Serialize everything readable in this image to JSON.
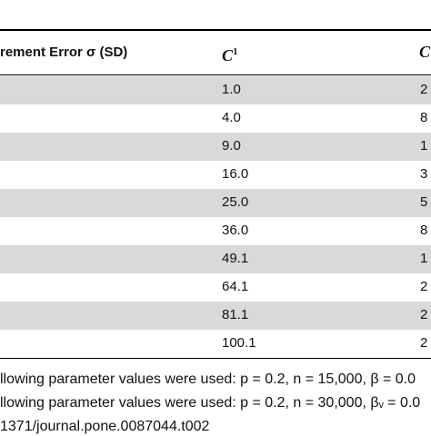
{
  "table": {
    "header": [
      "rement Error σ (SD)",
      {
        "text": "C",
        "sup": "1"
      },
      "C"
    ],
    "rows": [
      [
        "1.0",
        "2"
      ],
      [
        "4.0",
        "8"
      ],
      [
        "9.0",
        "1"
      ],
      [
        "16.0",
        "3"
      ],
      [
        "25.0",
        "5"
      ],
      [
        "36.0",
        "8"
      ],
      [
        "49.1",
        "1"
      ],
      [
        "64.1",
        "2"
      ],
      [
        "81.1",
        "2"
      ],
      [
        "100.1",
        "2"
      ]
    ]
  },
  "footnotes": [
    "llowing parameter values were used: p = 0.2, n = 15,000, β = 0.0",
    "llowing parameter values were used: p = 0.2, n = 30,000, βᵥ = 0.0",
    "1371/journal.pone.0087044.t002"
  ]
}
